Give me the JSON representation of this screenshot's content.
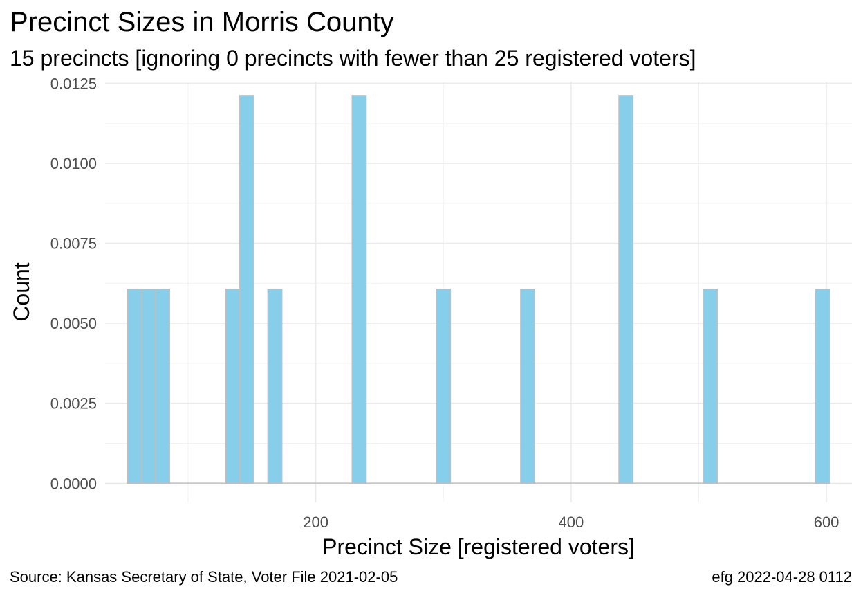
{
  "title": "Precinct Sizes in Morris County",
  "subtitle": "15 precincts [ignoring 0 precincts with fewer than 25 registered voters]",
  "caption_left": "Source:  Kansas Secretary of State, Voter File  2021-02-05",
  "caption_right": "efg 2022-04-28 0112",
  "colors": {
    "bar_fill": "#87CEEB",
    "bar_stroke": "#BEBEBE",
    "grid_major": "#EBEBEB",
    "grid_minor": "#F2F2F2",
    "baseline": "#C8C8C8"
  },
  "chart_data": {
    "type": "bar",
    "title": "Precinct Sizes in Morris County",
    "subtitle": "15 precincts [ignoring 0 precincts with fewer than 25 registered voters]",
    "xlabel": "Precinct Size [registered voters]",
    "ylabel": "Count",
    "xlim": [
      35,
      620
    ],
    "ylim": [
      -0.0006,
      0.01255
    ],
    "x_ticks": [
      200,
      400,
      600
    ],
    "x_tick_labels": [
      "200",
      "400",
      "600"
    ],
    "x_minor_ticks": [
      100,
      300,
      500
    ],
    "y_ticks": [
      0,
      0.0025,
      0.005,
      0.0075,
      0.01,
      0.0125
    ],
    "y_tick_labels": [
      "0.0000",
      "0.0025",
      "0.0050",
      "0.0075",
      "0.0100",
      "0.0125"
    ],
    "grid": true,
    "bin_width": 11,
    "bins": [
      {
        "x": 58,
        "value": 0.00606
      },
      {
        "x": 69,
        "value": 0.00606
      },
      {
        "x": 80,
        "value": 0.00606
      },
      {
        "x": 135,
        "value": 0.00606
      },
      {
        "x": 146,
        "value": 0.01212
      },
      {
        "x": 168,
        "value": 0.00606
      },
      {
        "x": 234,
        "value": 0.01212
      },
      {
        "x": 300,
        "value": 0.00606
      },
      {
        "x": 366,
        "value": 0.00606
      },
      {
        "x": 443,
        "value": 0.01212
      },
      {
        "x": 509,
        "value": 0.00606
      },
      {
        "x": 597,
        "value": 0.00606
      }
    ]
  }
}
